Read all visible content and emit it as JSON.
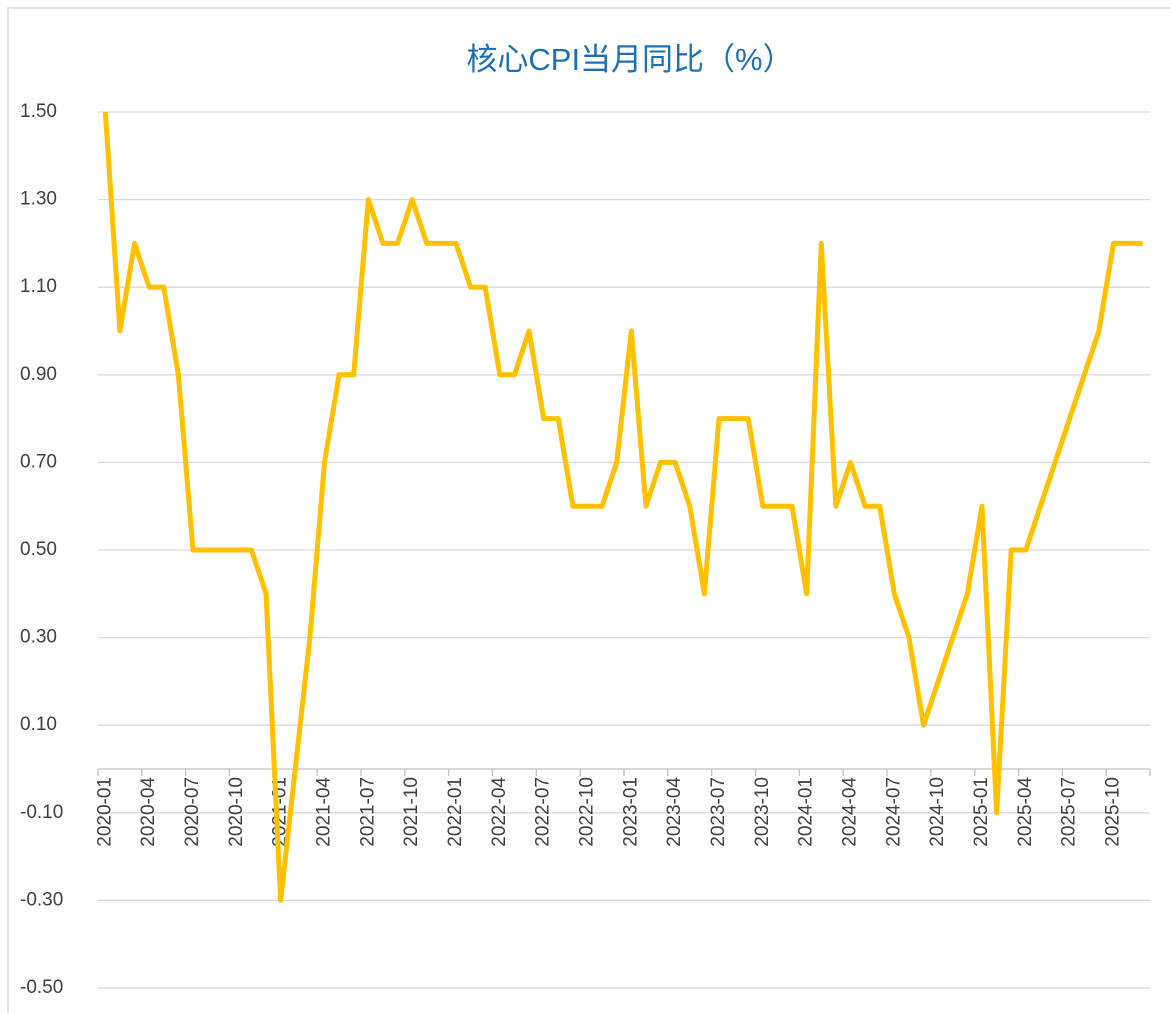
{
  "chart_data": {
    "type": "line",
    "title": "核心CPI当月同比（%）",
    "categories": [
      "2020-01",
      null,
      null,
      "2020-04",
      null,
      null,
      "2020-07",
      null,
      null,
      "2020-10",
      null,
      null,
      "2021-01",
      null,
      null,
      "2021-04",
      null,
      null,
      "2021-07",
      null,
      null,
      "2021-10",
      null,
      null,
      "2022-01",
      null,
      null,
      "2022-04",
      null,
      null,
      "2022-07",
      null,
      null,
      "2022-10",
      null,
      null,
      "2023-01",
      null,
      null,
      "2023-04",
      null,
      null,
      "2023-07",
      null,
      null,
      "2023-10",
      null,
      null,
      "2024-01",
      null,
      null,
      "2024-04",
      null,
      null,
      "2024-07",
      null,
      null,
      "2024-10",
      null,
      null,
      "2025-01",
      null,
      null,
      "2025-04",
      null,
      null,
      "2025-07",
      null,
      null,
      "2025-10",
      null,
      null
    ],
    "series": [
      {
        "name": "核心CPI当月同比",
        "color": "#ffc000",
        "values": [
          1.5,
          1.0,
          1.2,
          1.1,
          1.1,
          0.9,
          0.5,
          0.5,
          0.5,
          0.5,
          0.5,
          0.4,
          -0.3,
          0.0,
          0.3,
          0.7,
          0.9,
          0.9,
          1.3,
          1.2,
          1.2,
          1.3,
          1.2,
          1.2,
          1.2,
          1.1,
          1.1,
          0.9,
          0.9,
          1.0,
          0.8,
          0.8,
          0.6,
          0.6,
          0.6,
          0.7,
          1.0,
          0.6,
          0.7,
          0.7,
          0.6,
          0.4,
          0.8,
          0.8,
          0.8,
          0.6,
          0.6,
          0.6,
          0.4,
          1.2,
          0.6,
          0.7,
          0.6,
          0.6,
          0.4,
          0.3,
          0.1,
          0.2,
          0.3,
          0.4,
          0.6,
          -0.1,
          0.5,
          0.5,
          0.6,
          0.7,
          0.8,
          0.9,
          1.0,
          1.2,
          1.2,
          1.2
        ]
      }
    ],
    "ylim": [
      -0.5,
      1.5
    ],
    "yticks": [
      {
        "value": -0.5,
        "label": "-0.50"
      },
      {
        "value": -0.3,
        "label": "-0.30"
      },
      {
        "value": -0.1,
        "label": "-0.10"
      },
      {
        "value": 0.1,
        "label": "0.10"
      },
      {
        "value": 0.3,
        "label": "0.30"
      },
      {
        "value": 0.5,
        "label": "0.50"
      },
      {
        "value": 0.7,
        "label": "0.70"
      },
      {
        "value": 0.9,
        "label": "0.90"
      },
      {
        "value": 1.1,
        "label": "1.10"
      },
      {
        "value": 1.3,
        "label": "1.30"
      },
      {
        "value": 1.5,
        "label": "1.50"
      }
    ],
    "grid": true
  }
}
